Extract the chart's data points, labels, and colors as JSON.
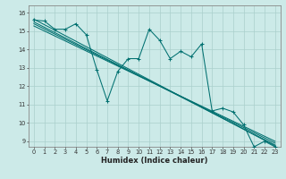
{
  "xlabel": "Humidex (Indice chaleur)",
  "background_color": "#cceae8",
  "grid_color": "#aacfcc",
  "line_color": "#007070",
  "xlim": [
    -0.5,
    23.5
  ],
  "ylim": [
    8.7,
    16.4
  ],
  "yticks": [
    9,
    10,
    11,
    12,
    13,
    14,
    15,
    16
  ],
  "xticks": [
    0,
    1,
    2,
    3,
    4,
    5,
    6,
    7,
    8,
    9,
    10,
    11,
    12,
    13,
    14,
    15,
    16,
    17,
    18,
    19,
    20,
    21,
    22,
    23
  ],
  "jagged_y": [
    15.6,
    15.55,
    15.1,
    15.1,
    15.4,
    14.8,
    12.9,
    11.2,
    12.8,
    13.5,
    13.5,
    15.1,
    14.5,
    13.5,
    13.9,
    13.6,
    14.3,
    10.65,
    10.8,
    10.6,
    9.9,
    8.7,
    9.0,
    8.7
  ],
  "regression_lines": [
    {
      "x0": 0,
      "y0": 15.65,
      "x1": 23,
      "y1": 8.75
    },
    {
      "x0": 0,
      "y0": 15.5,
      "x1": 23,
      "y1": 8.8
    },
    {
      "x0": 0,
      "y0": 15.4,
      "x1": 23,
      "y1": 8.9
    },
    {
      "x0": 0,
      "y0": 15.28,
      "x1": 23,
      "y1": 9.0
    }
  ],
  "xlabel_fontsize": 6.0,
  "tick_fontsize": 4.8
}
